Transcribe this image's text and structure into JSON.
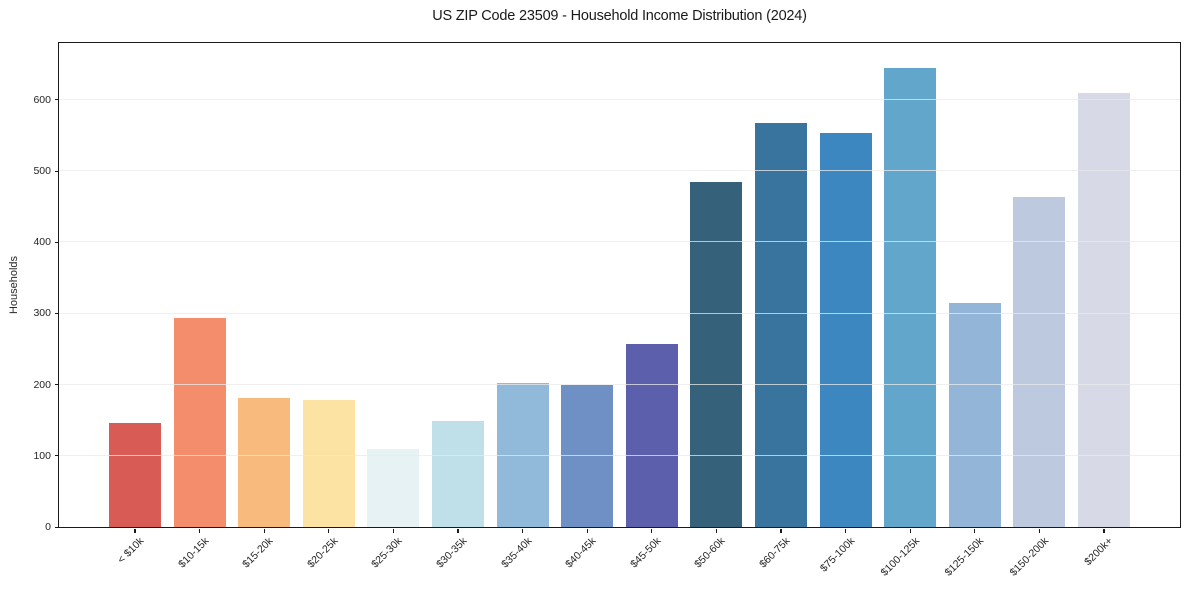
{
  "figure": {
    "background": "#ffffff",
    "text_color": "#262626",
    "title_color": "#1a1a1a",
    "spine_color": "#1a1a1a",
    "grid_color": "#e9e9e9"
  },
  "chart_data": {
    "type": "bar",
    "title": "US ZIP Code 23509 - Household Income Distribution (2024)",
    "xlabel": "",
    "ylabel": "Households",
    "categories": [
      "< $10k",
      "$10-15k",
      "$15-20k",
      "$20-25k",
      "$25-30k",
      "$30-35k",
      "$35-40k",
      "$40-45k",
      "$45-50k",
      "$50-60k",
      "$60-75k",
      "$75-100k",
      "$100-125k",
      "$125-150k",
      "$150-200k",
      "$200k+"
    ],
    "values": [
      146,
      294,
      182,
      178,
      110,
      149,
      202,
      199,
      257,
      485,
      567,
      554,
      645,
      315,
      464,
      610
    ],
    "bar_colors": [
      "#d95b55",
      "#f48d6b",
      "#f9ba7d",
      "#fce3a3",
      "#e7f2f5",
      "#bfdfe9",
      "#91b9d9",
      "#6e90c5",
      "#5c5fab",
      "#35617a",
      "#38749e",
      "#3c87c0",
      "#62a6cc",
      "#92b5d8",
      "#bcc9de",
      "#d8d9e7"
    ],
    "yticks": [
      0,
      100,
      200,
      300,
      400,
      500,
      600
    ],
    "ylim": [
      0,
      680
    ],
    "grid": "horizontal-only",
    "grid_above_bars": true,
    "legend": "none",
    "x_tick_rotation_deg": 45
  }
}
